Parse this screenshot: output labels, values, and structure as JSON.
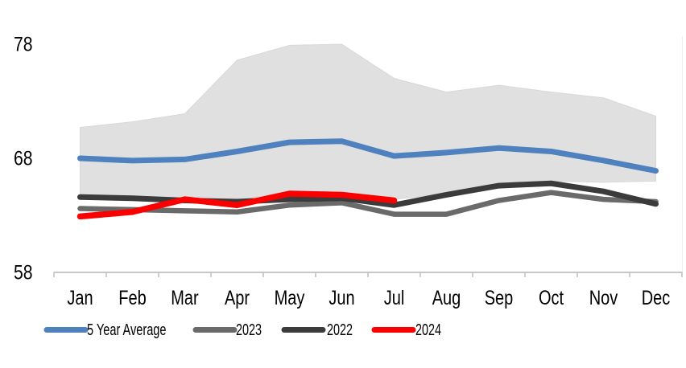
{
  "chart_data": {
    "type": "line",
    "title": "",
    "xlabel": "",
    "ylabel": "",
    "x_categories": [
      "Jan",
      "Feb",
      "Mar",
      "Apr",
      "May",
      "Jun",
      "Jul",
      "Aug",
      "Sep",
      "Oct",
      "Nov",
      "Dec"
    ],
    "y_ticks": [
      78,
      68,
      58
    ],
    "ylim": [
      58,
      79.6
    ],
    "grid": false,
    "legend_position": "bottom",
    "band": {
      "description": "5-year min-max range shaded area",
      "fill_color": "#e0e0e0",
      "high": [
        70.7,
        71.2,
        71.9,
        76.6,
        77.9,
        78.0,
        75.0,
        73.8,
        74.4,
        73.8,
        73.3,
        71.7
      ],
      "low": [
        64.6,
        64.5,
        64.4,
        64.3,
        65.1,
        65.0,
        64.4,
        64.9,
        65.7,
        66.0,
        65.9,
        66.0
      ]
    },
    "series": [
      {
        "name": "5 Year Average",
        "color": "#4e81bd",
        "values": [
          68.0,
          67.8,
          67.9,
          68.6,
          69.4,
          69.5,
          68.2,
          68.5,
          68.9,
          68.6,
          67.8,
          66.9
        ]
      },
      {
        "name": "2023",
        "color": "#6a6a6a",
        "values": [
          63.6,
          63.5,
          63.4,
          63.3,
          63.9,
          64.1,
          63.1,
          63.1,
          64.3,
          65.0,
          64.4,
          64.2
        ]
      },
      {
        "name": "2022",
        "color": "#3b3b3b",
        "values": [
          64.6,
          64.5,
          64.3,
          64.2,
          64.4,
          64.5,
          63.9,
          64.8,
          65.6,
          65.8,
          65.1,
          64.0
        ]
      },
      {
        "name": "2024",
        "color": "#fb0000",
        "values": [
          62.9,
          63.3,
          64.4,
          63.9,
          64.9,
          64.8,
          64.3
        ]
      }
    ]
  },
  "legend": {
    "items": [
      {
        "label": "5 Year Average",
        "color": "#4e81bd"
      },
      {
        "label": "2023",
        "color": "#6a6a6a"
      },
      {
        "label": "2022",
        "color": "#3b3b3b"
      },
      {
        "label": "2024",
        "color": "#fb0000"
      }
    ]
  },
  "colors": {
    "band_fill": "#e0e0e0",
    "band_edge": "#d8d8d8",
    "axis_line": "#bfbfbf",
    "plot_right_border": "#f0f0f0",
    "text": "#000000"
  }
}
